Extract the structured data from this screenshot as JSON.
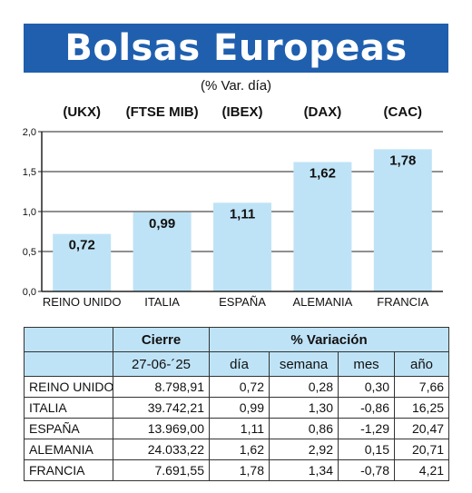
{
  "header": {
    "title": "Bolsas Europeas",
    "subtitle": "(% Var. día)"
  },
  "colors": {
    "title_bg": "#1f5fae",
    "bar_fill": "#bfe3f6",
    "table_header_bg": "#bfe3f6"
  },
  "chart_data": {
    "type": "bar",
    "categories": [
      "REINO UNIDO",
      "ITALIA",
      "ESPAÑA",
      "ALEMANIA",
      "FRANCIA"
    ],
    "index_codes": [
      "(UKX)",
      "(FTSE MIB)",
      "(IBEX)",
      "(DAX)",
      "(CAC)"
    ],
    "values": [
      0.72,
      0.99,
      1.11,
      1.62,
      1.78
    ],
    "value_labels": [
      "0,72",
      "0,99",
      "1,11",
      "1,62",
      "1,78"
    ],
    "ylim": [
      0,
      2.0
    ],
    "yticks": [
      0,
      0.5,
      1.0,
      1.5,
      2.0
    ],
    "ytick_labels": [
      "0,0",
      "0,5",
      "1,0",
      "1,5",
      "2,0"
    ],
    "grid": true
  },
  "table": {
    "header_cierre": "Cierre",
    "header_variacion": "% Variación",
    "date": "27-06-´25",
    "columns": [
      "día",
      "semana",
      "mes",
      "año"
    ],
    "rows": [
      {
        "pais": "REINO UNIDO",
        "cierre": "8.798,91",
        "dia": "0,72",
        "semana": "0,28",
        "mes": "0,30",
        "ano": "7,66"
      },
      {
        "pais": "ITALIA",
        "cierre": "39.742,21",
        "dia": "0,99",
        "semana": "1,30",
        "mes": "-0,86",
        "ano": "16,25"
      },
      {
        "pais": "ESPAÑA",
        "cierre": "13.969,00",
        "dia": "1,11",
        "semana": "0,86",
        "mes": "-1,29",
        "ano": "20,47"
      },
      {
        "pais": "ALEMANIA",
        "cierre": "24.033,22",
        "dia": "1,62",
        "semana": "2,92",
        "mes": "0,15",
        "ano": "20,71"
      },
      {
        "pais": "FRANCIA",
        "cierre": "7.691,55",
        "dia": "1,78",
        "semana": "1,34",
        "mes": "-0,78",
        "ano": "4,21"
      }
    ]
  }
}
